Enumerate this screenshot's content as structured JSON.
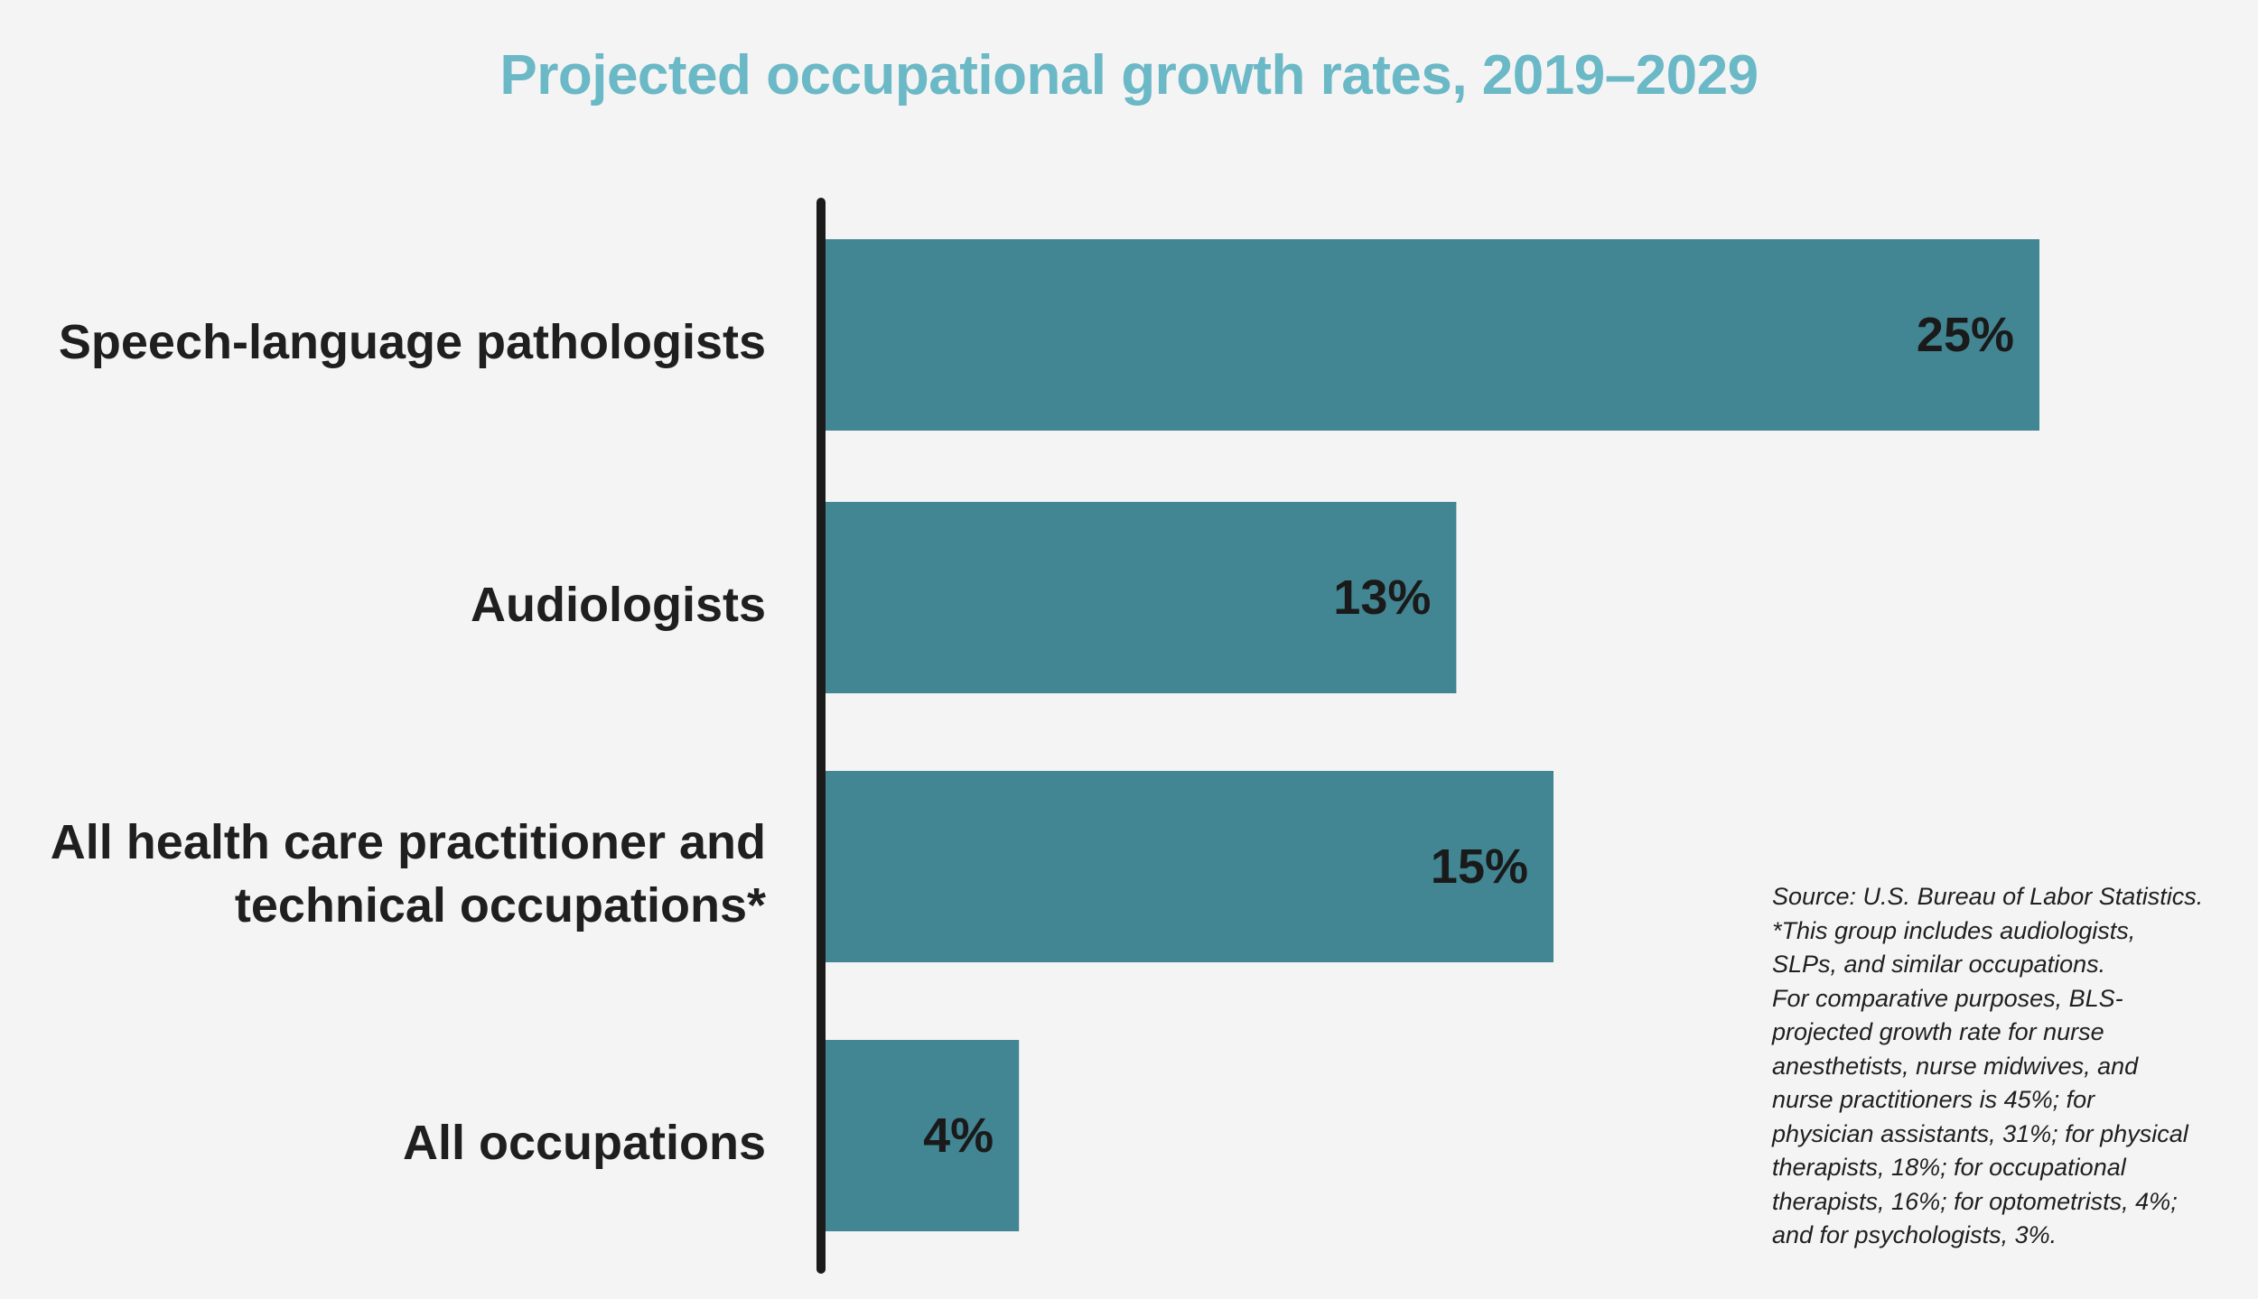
{
  "colors": {
    "title": "#6bb8c6",
    "bar": "#428593",
    "axis": "#1b1b1b",
    "text": "#1f1f1f",
    "background": "#f4f4f4"
  },
  "chart_data": {
    "type": "bar",
    "orientation": "horizontal",
    "title": "Projected occupational growth rates, 2019–2029",
    "categories": [
      [
        "Speech-language pathologists"
      ],
      [
        "Audiologists"
      ],
      [
        "All health care practitioner and",
        "technical occupations*"
      ],
      [
        "All occupations"
      ]
    ],
    "values": [
      25,
      13,
      15,
      4
    ],
    "value_labels": [
      "25%",
      "13%",
      "15%",
      "4%"
    ],
    "unit": "%",
    "xlim": [
      0,
      25
    ],
    "grid": false,
    "legend": "none"
  },
  "source_note": {
    "lines": [
      "Source: U.S. Bureau of Labor Statistics.",
      "*This group includes audiologists,",
      "SLPs, and similar occupations.",
      "For comparative purposes, BLS-",
      "projected growth rate for nurse",
      "anesthetists, nurse midwives, and",
      "nurse practitioners is 45%; for",
      "physician assistants, 31%; for physical",
      "therapists, 18%; for occupational",
      "therapists, 16%; for optometrists, 4%;",
      "and for psychologists, 3%."
    ]
  }
}
